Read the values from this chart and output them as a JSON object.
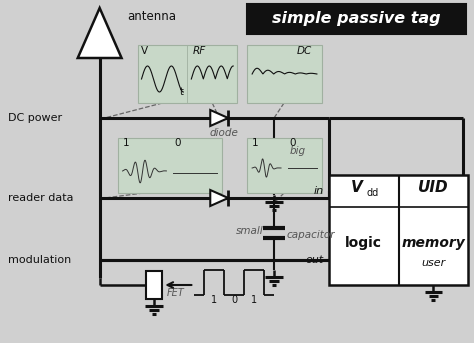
{
  "bg_color": "#d0d0d0",
  "title_text": "simple passive tag",
  "title_bg": "#111111",
  "title_color": "#ffffff",
  "line_color": "#111111",
  "gray_color": "#555555",
  "wf_bg": "#c8d8c8",
  "wf_grid": "#a0b0a0",
  "white": "#ffffff",
  "labels": {
    "antenna": "antenna",
    "dc_power": "DC power",
    "reader_data": "reader data",
    "modulation": "modulation",
    "diode": "diode",
    "big": "big",
    "small": "small",
    "capacitor": "capacitor",
    "fet": "FET",
    "vdd": "V",
    "vdd_sub": "dd",
    "uid": "UID",
    "logic": "logic",
    "memory": "memory",
    "in_lbl": "in",
    "out_lbl": "out",
    "user": "user",
    "dc": "DC",
    "rf": "RF",
    "v_lbl": "V",
    "t_lbl": "t"
  }
}
